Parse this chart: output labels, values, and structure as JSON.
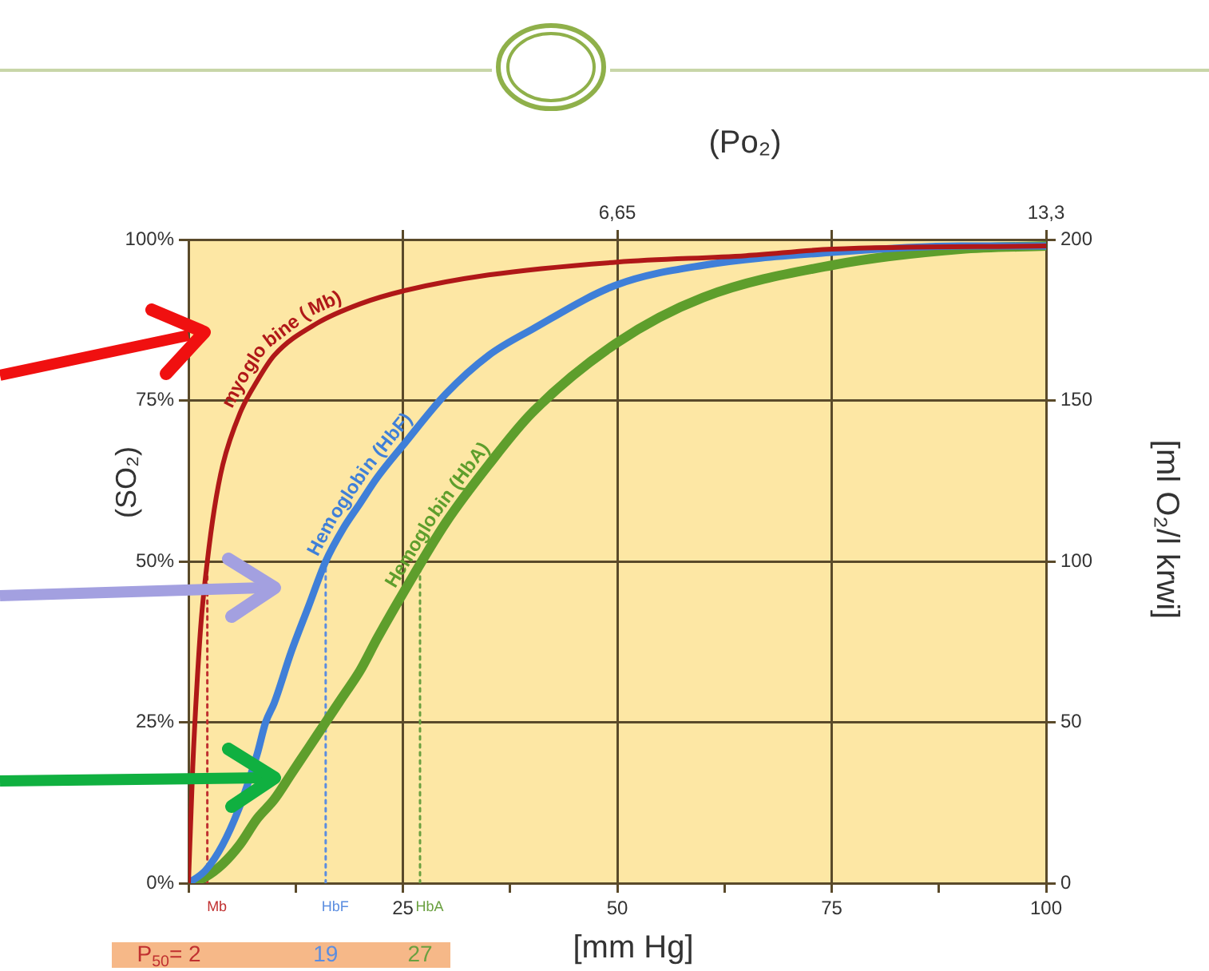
{
  "chart_data": {
    "type": "line",
    "xlabel": "[mm Hg]",
    "ylabel": "(SO₂)",
    "y2label": "[ml O₂/l krwi]",
    "x2label": "(Po₂)",
    "xlim": [
      0,
      100
    ],
    "xticks": [
      {
        "value": 0,
        "label": null
      },
      {
        "value": 12.5,
        "label": null
      },
      25,
      {
        "value": 37.5,
        "label": null
      },
      50,
      {
        "value": 62.5,
        "label": null
      },
      75,
      {
        "value": 87.5,
        "label": null
      },
      100
    ],
    "x2lim": [
      0,
      13.3
    ],
    "x2ticks": [
      {
        "value": 3.325,
        "label": null
      },
      {
        "value": 6.65,
        "label": "6,65"
      },
      {
        "value": 9.975,
        "label": null
      },
      {
        "value": 13.3,
        "label": "13,3"
      }
    ],
    "ylim": [
      0,
      100
    ],
    "yticks": [
      {
        "value": 0,
        "label": "0%"
      },
      {
        "value": 25,
        "label": "25%"
      },
      {
        "value": 50,
        "label": "50%"
      },
      {
        "value": 75,
        "label": "75%"
      },
      {
        "value": 100,
        "label": "100%"
      }
    ],
    "y2lim": [
      0,
      200
    ],
    "y2ticks": [
      0,
      50,
      100,
      150,
      200
    ],
    "grid": true,
    "legend": false,
    "marker": "none",
    "series": [
      {
        "name": "myoglobine (Mb)",
        "color": "#b01818",
        "line_style": "solid",
        "x": [
          0,
          0.5,
          1,
          1.5,
          2.2,
          3,
          4,
          6,
          8,
          10,
          15,
          20,
          25,
          35,
          50,
          65,
          75,
          100
        ],
        "values": [
          0,
          18,
          31,
          41,
          50,
          58,
          65,
          73,
          78,
          82,
          87,
          90,
          92,
          94.5,
          96.5,
          97.5,
          98.5,
          99
        ]
      },
      {
        "name": "Hemoglobin (HbF)",
        "color": "#3f7fd8",
        "line_style": "solid",
        "x": [
          0,
          2,
          4,
          6,
          8,
          9,
          10,
          12,
          14,
          16,
          18,
          20,
          22,
          25,
          30,
          35,
          40,
          50,
          60,
          75,
          90,
          100
        ],
        "values": [
          0,
          2,
          6,
          12,
          20,
          25,
          28,
          36,
          43,
          50,
          55,
          59,
          63,
          68,
          76,
          82,
          86,
          93,
          96,
          98,
          99,
          99
        ]
      },
      {
        "name": "Hemoglobin (HbA)",
        "color": "#5e9e2c",
        "line_style": "solid",
        "x": [
          0,
          2,
          4,
          6,
          8,
          10,
          12,
          14,
          16,
          18,
          20,
          22,
          25,
          30,
          35,
          40,
          50,
          60,
          75,
          90,
          100
        ],
        "values": [
          0,
          1,
          3,
          6,
          10,
          13,
          17,
          21,
          25,
          29,
          33,
          38,
          45,
          56,
          65,
          73,
          84,
          91,
          96,
          98.5,
          99
        ]
      },
      {
        "name": "Mb",
        "color": "#c03030",
        "line_style": "dotted",
        "x": [
          2.2,
          2.2
        ],
        "values": [
          0,
          50
        ]
      },
      {
        "name": "HbF",
        "color": "#5b8de0",
        "line_style": "dotted",
        "x": [
          16,
          16
        ],
        "values": [
          0,
          50
        ]
      },
      {
        "name": "HbA",
        "color": "#6aa040",
        "line_style": "dotted",
        "x": [
          27,
          27
        ],
        "values": [
          0,
          50
        ]
      }
    ],
    "annotations": [
      "P$_{50}$= 2",
      "19",
      "27"
    ]
  }
}
